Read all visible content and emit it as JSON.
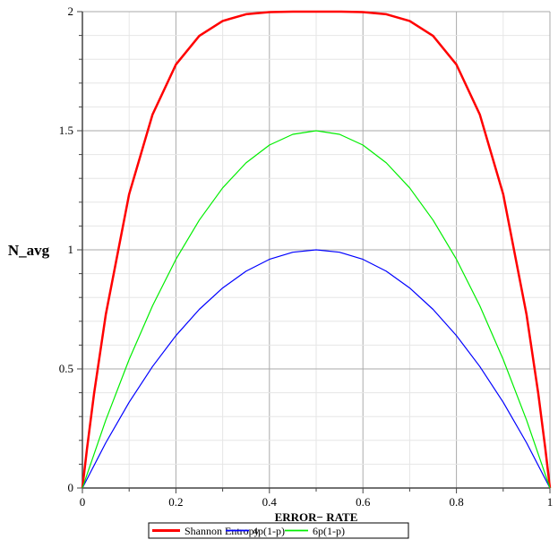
{
  "chart_data": {
    "type": "line",
    "title": "",
    "xlabel": "ERROR− RATE",
    "ylabel": "N_avg",
    "xlim": [
      0,
      1
    ],
    "ylim": [
      0,
      2
    ],
    "grid": true,
    "xticks": [
      "0",
      "0.2",
      "0.4",
      "0.6",
      "0.8",
      "1"
    ],
    "yticks": [
      "0",
      "0.5",
      "1",
      "1.5",
      "2"
    ],
    "legend_position": "bottom",
    "series": [
      {
        "name": "Shannon Entropy",
        "color": "#ff0000",
        "x": [
          0,
          0.01,
          0.025,
          0.05,
          0.1,
          0.15,
          0.2,
          0.25,
          0.3,
          0.35,
          0.4,
          0.45,
          0.5,
          0.55,
          0.6,
          0.65,
          0.7,
          0.75,
          0.8,
          0.85,
          0.9,
          0.95,
          0.975,
          0.99,
          1
        ],
        "y": [
          0,
          0.167,
          0.396,
          0.728,
          1.234,
          1.568,
          1.778,
          1.898,
          1.961,
          1.989,
          1.998,
          2.0,
          2.0,
          2.0,
          1.998,
          1.989,
          1.961,
          1.898,
          1.778,
          1.568,
          1.234,
          0.728,
          0.396,
          0.167,
          0
        ]
      },
      {
        "name": "4p(1-p)",
        "color": "#0000ff",
        "x": [
          0,
          0.05,
          0.1,
          0.15,
          0.2,
          0.25,
          0.3,
          0.35,
          0.4,
          0.45,
          0.5,
          0.55,
          0.6,
          0.65,
          0.7,
          0.75,
          0.8,
          0.85,
          0.9,
          0.95,
          1
        ],
        "y": [
          0,
          0.19,
          0.36,
          0.51,
          0.64,
          0.75,
          0.84,
          0.91,
          0.96,
          0.99,
          1,
          0.99,
          0.96,
          0.91,
          0.84,
          0.75,
          0.64,
          0.51,
          0.36,
          0.19,
          0
        ]
      },
      {
        "name": "6p(1-p)",
        "color": "#00ee00",
        "x": [
          0,
          0.05,
          0.1,
          0.15,
          0.2,
          0.25,
          0.3,
          0.35,
          0.4,
          0.45,
          0.5,
          0.55,
          0.6,
          0.65,
          0.7,
          0.75,
          0.8,
          0.85,
          0.9,
          0.95,
          1
        ],
        "y": [
          0,
          0.285,
          0.54,
          0.765,
          0.96,
          1.125,
          1.26,
          1.365,
          1.44,
          1.485,
          1.5,
          1.485,
          1.44,
          1.365,
          1.26,
          1.125,
          0.96,
          0.765,
          0.54,
          0.285,
          0
        ]
      }
    ]
  }
}
